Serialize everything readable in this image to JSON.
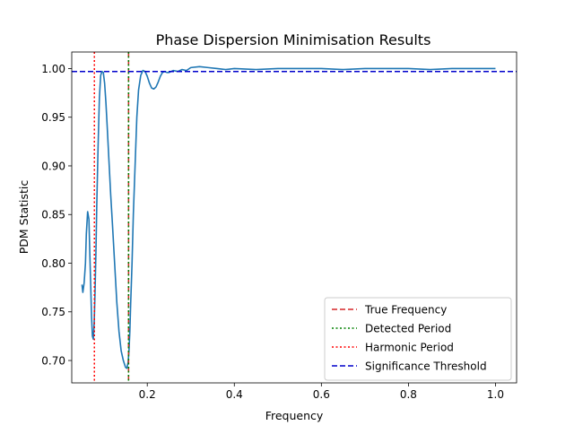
{
  "chart_data": {
    "type": "line",
    "title": "Phase Dispersion Minimisation Results",
    "xlabel": "Frequency",
    "ylabel": "PDM Statistic",
    "xlim": [
      0.0265,
      1.0485
    ],
    "ylim": [
      0.677,
      1.017
    ],
    "xticks": [
      0.2,
      0.4,
      0.6,
      0.8,
      1.0
    ],
    "xtick_labels": [
      "0.2",
      "0.4",
      "0.6",
      "0.8",
      "1.0"
    ],
    "yticks": [
      0.7,
      0.75,
      0.8,
      0.85,
      0.9,
      0.95,
      1.0
    ],
    "ytick_labels": [
      "0.70",
      "0.75",
      "0.80",
      "0.85",
      "0.90",
      "0.95",
      "1.00"
    ],
    "grid": false,
    "legend_position": "lower right",
    "series": [
      {
        "color": "#1f77b4",
        "x": [
          0.05,
          0.052,
          0.055,
          0.058,
          0.06,
          0.063,
          0.066,
          0.068,
          0.07,
          0.072,
          0.074,
          0.076,
          0.078,
          0.08,
          0.082,
          0.084,
          0.087,
          0.09,
          0.093,
          0.096,
          0.099,
          0.102,
          0.105,
          0.108,
          0.112,
          0.116,
          0.12,
          0.125,
          0.13,
          0.135,
          0.14,
          0.145,
          0.15,
          0.153,
          0.156,
          0.158,
          0.16,
          0.162,
          0.165,
          0.168,
          0.172,
          0.176,
          0.18,
          0.185,
          0.19,
          0.195,
          0.2,
          0.205,
          0.21,
          0.215,
          0.22,
          0.225,
          0.23,
          0.235,
          0.24,
          0.245,
          0.25,
          0.26,
          0.27,
          0.28,
          0.29,
          0.3,
          0.32,
          0.34,
          0.36,
          0.38,
          0.4,
          0.45,
          0.5,
          0.55,
          0.6,
          0.65,
          0.7,
          0.75,
          0.8,
          0.85,
          0.9,
          0.95,
          1.0
        ],
        "values": [
          0.778,
          0.77,
          0.78,
          0.8,
          0.83,
          0.853,
          0.845,
          0.81,
          0.778,
          0.745,
          0.725,
          0.722,
          0.738,
          0.77,
          0.81,
          0.86,
          0.92,
          0.97,
          0.993,
          0.997,
          0.996,
          0.985,
          0.965,
          0.94,
          0.905,
          0.87,
          0.84,
          0.8,
          0.76,
          0.73,
          0.71,
          0.7,
          0.693,
          0.692,
          0.698,
          0.71,
          0.73,
          0.76,
          0.8,
          0.85,
          0.9,
          0.95,
          0.978,
          0.993,
          0.998,
          0.997,
          0.992,
          0.985,
          0.98,
          0.979,
          0.981,
          0.986,
          0.992,
          0.996,
          0.997,
          0.996,
          0.996,
          0.998,
          0.997,
          0.999,
          0.998,
          1.001,
          1.002,
          1.001,
          1.0,
          0.999,
          1.0,
          0.999,
          1.0,
          1.0,
          1.0,
          0.999,
          1.0,
          1.0,
          1.0,
          0.999,
          1.0,
          1.0,
          1.0
        ]
      }
    ],
    "vlines": [
      {
        "x": 0.157,
        "style": "dashed",
        "color": "#d62728"
      },
      {
        "x": 0.157,
        "style": "dotted",
        "color": "#008000"
      },
      {
        "x": 0.0785,
        "style": "dotted",
        "color": "#ff0000"
      }
    ],
    "hlines": [
      {
        "y": 0.997,
        "style": "dashed",
        "color": "#0000cc"
      }
    ],
    "legend": [
      {
        "label": "True Frequency",
        "style": "dashed",
        "color": "#d62728"
      },
      {
        "label": "Detected Period",
        "style": "dotted",
        "color": "#008000"
      },
      {
        "label": "Harmonic Period",
        "style": "dotted",
        "color": "#ff0000"
      },
      {
        "label": "Significance Threshold",
        "style": "dashed",
        "color": "#0000cc"
      }
    ]
  }
}
